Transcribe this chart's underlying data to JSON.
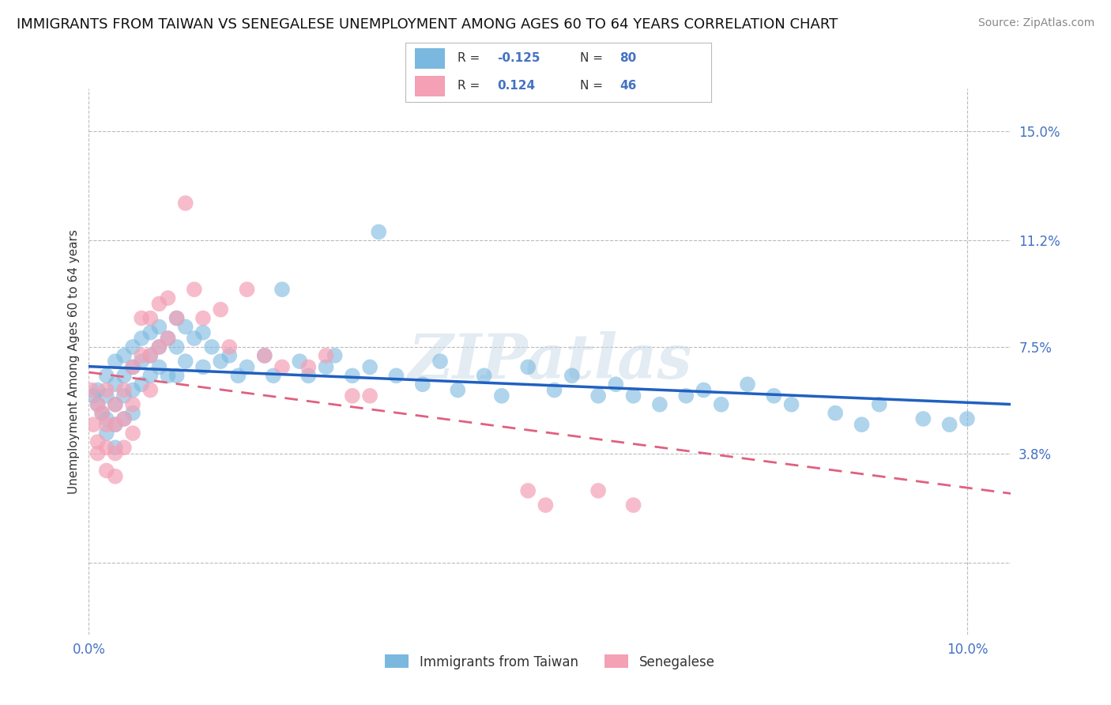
{
  "title": "IMMIGRANTS FROM TAIWAN VS SENEGALESE UNEMPLOYMENT AMONG AGES 60 TO 64 YEARS CORRELATION CHART",
  "source": "Source: ZipAtlas.com",
  "ylabel": "Unemployment Among Ages 60 to 64 years",
  "xlim": [
    0.0,
    0.105
  ],
  "ylim": [
    -0.025,
    0.165
  ],
  "yticks": [
    0.0,
    0.038,
    0.075,
    0.112,
    0.15
  ],
  "ytick_labels": [
    "",
    "3.8%",
    "7.5%",
    "11.2%",
    "15.0%"
  ],
  "xticks": [
    0.0,
    0.025,
    0.05,
    0.075,
    0.1
  ],
  "xtick_labels": [
    "0.0%",
    "",
    "",
    "",
    "10.0%"
  ],
  "taiwan_color": "#7ab8e0",
  "senegal_color": "#f4a0b5",
  "taiwan_line_color": "#2060c0",
  "senegal_line_color": "#e06080",
  "taiwan_R": -0.125,
  "taiwan_N": 80,
  "senegal_R": 0.124,
  "senegal_N": 46,
  "watermark": "ZIPatlas",
  "legend_taiwan": "Immigrants from Taiwan",
  "legend_senegal": "Senegalese",
  "title_fontsize": 13,
  "axis_label_fontsize": 11,
  "tick_fontsize": 12,
  "tick_color": "#4472c4",
  "grid_color": "#bbbbbb",
  "background_color": "#ffffff",
  "taiwan_scatter_x": [
    0.0005,
    0.001,
    0.001,
    0.0015,
    0.002,
    0.002,
    0.002,
    0.002,
    0.003,
    0.003,
    0.003,
    0.003,
    0.003,
    0.004,
    0.004,
    0.004,
    0.004,
    0.005,
    0.005,
    0.005,
    0.005,
    0.006,
    0.006,
    0.006,
    0.007,
    0.007,
    0.007,
    0.008,
    0.008,
    0.008,
    0.009,
    0.009,
    0.01,
    0.01,
    0.01,
    0.011,
    0.011,
    0.012,
    0.013,
    0.013,
    0.014,
    0.015,
    0.016,
    0.017,
    0.018,
    0.02,
    0.021,
    0.022,
    0.024,
    0.025,
    0.027,
    0.028,
    0.03,
    0.032,
    0.033,
    0.035,
    0.038,
    0.04,
    0.042,
    0.045,
    0.047,
    0.05,
    0.053,
    0.055,
    0.058,
    0.06,
    0.062,
    0.065,
    0.068,
    0.07,
    0.072,
    0.075,
    0.078,
    0.08,
    0.085,
    0.088,
    0.09,
    0.095,
    0.098,
    0.1
  ],
  "taiwan_scatter_y": [
    0.058,
    0.055,
    0.06,
    0.052,
    0.065,
    0.058,
    0.05,
    0.045,
    0.07,
    0.062,
    0.055,
    0.048,
    0.04,
    0.072,
    0.065,
    0.058,
    0.05,
    0.075,
    0.068,
    0.06,
    0.052,
    0.078,
    0.07,
    0.062,
    0.08,
    0.072,
    0.065,
    0.082,
    0.075,
    0.068,
    0.078,
    0.065,
    0.085,
    0.075,
    0.065,
    0.082,
    0.07,
    0.078,
    0.08,
    0.068,
    0.075,
    0.07,
    0.072,
    0.065,
    0.068,
    0.072,
    0.065,
    0.095,
    0.07,
    0.065,
    0.068,
    0.072,
    0.065,
    0.068,
    0.115,
    0.065,
    0.062,
    0.07,
    0.06,
    0.065,
    0.058,
    0.068,
    0.06,
    0.065,
    0.058,
    0.062,
    0.058,
    0.055,
    0.058,
    0.06,
    0.055,
    0.062,
    0.058,
    0.055,
    0.052,
    0.048,
    0.055,
    0.05,
    0.048,
    0.05
  ],
  "senegal_scatter_x": [
    0.0003,
    0.0005,
    0.001,
    0.001,
    0.001,
    0.0015,
    0.002,
    0.002,
    0.002,
    0.002,
    0.003,
    0.003,
    0.003,
    0.003,
    0.004,
    0.004,
    0.004,
    0.005,
    0.005,
    0.005,
    0.006,
    0.006,
    0.007,
    0.007,
    0.007,
    0.008,
    0.008,
    0.009,
    0.009,
    0.01,
    0.011,
    0.012,
    0.013,
    0.015,
    0.016,
    0.018,
    0.02,
    0.022,
    0.025,
    0.027,
    0.03,
    0.032,
    0.05,
    0.052,
    0.058,
    0.062
  ],
  "senegal_scatter_y": [
    0.06,
    0.048,
    0.055,
    0.042,
    0.038,
    0.052,
    0.06,
    0.048,
    0.04,
    0.032,
    0.055,
    0.048,
    0.038,
    0.03,
    0.06,
    0.05,
    0.04,
    0.068,
    0.055,
    0.045,
    0.085,
    0.072,
    0.085,
    0.072,
    0.06,
    0.09,
    0.075,
    0.092,
    0.078,
    0.085,
    0.125,
    0.095,
    0.085,
    0.088,
    0.075,
    0.095,
    0.072,
    0.068,
    0.068,
    0.072,
    0.058,
    0.058,
    0.025,
    0.02,
    0.025,
    0.02
  ]
}
